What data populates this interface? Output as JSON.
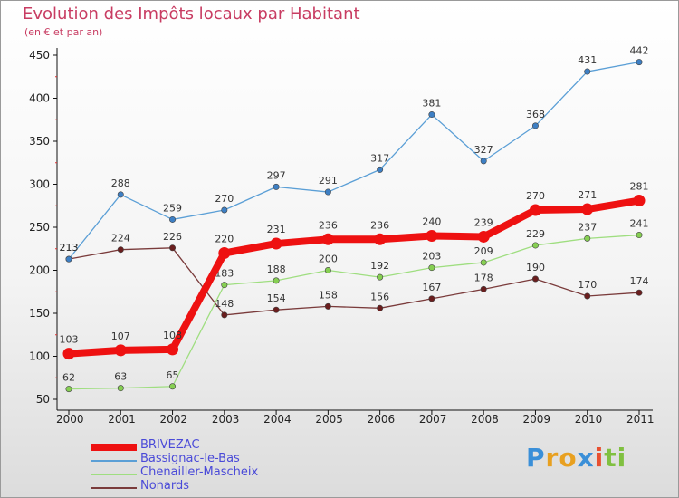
{
  "title": "Evolution des Impôts locaux par Habitant",
  "subtitle": "(en € et par an)",
  "logo": {
    "p": "P",
    "r": "r",
    "o": "o",
    "x": "x",
    "i1": "i",
    "t": "t",
    "i2": "i"
  },
  "colors": {
    "logo_p": "#3a8fd8",
    "logo_r": "#e8a020",
    "logo_o": "#e8a020",
    "logo_x": "#3a8fd8",
    "logo_i1": "#e85030",
    "logo_t": "#80c040",
    "logo_i2": "#80c040"
  },
  "chart_data": {
    "type": "line",
    "x": [
      "2000",
      "2001",
      "2002",
      "2003",
      "2004",
      "2005",
      "2006",
      "2007",
      "2008",
      "2009",
      "2010",
      "2011"
    ],
    "ylim": [
      50,
      450
    ],
    "yticks": [
      50,
      100,
      150,
      200,
      250,
      300,
      350,
      400,
      450
    ],
    "grid": false,
    "legend_position": "bottom-left",
    "series": [
      {
        "name": "BRIVEZAC",
        "color": "#ee1111",
        "point_color": "#ee1111",
        "values": [
          103,
          107,
          108,
          220,
          231,
          236,
          236,
          240,
          239,
          270,
          271,
          281
        ]
      },
      {
        "name": "Bassignac-le-Bas",
        "color": "#5b9fd6",
        "point_color": "#3d7fc4",
        "values": [
          213,
          288,
          259,
          270,
          297,
          291,
          317,
          381,
          327,
          368,
          431,
          442
        ]
      },
      {
        "name": "Chenailler-Mascheix",
        "color": "#9fde80",
        "point_color": "#86cf52",
        "values": [
          62,
          63,
          65,
          183,
          188,
          200,
          192,
          203,
          209,
          229,
          237,
          241
        ]
      },
      {
        "name": "Nonards",
        "color": "#7a3b3b",
        "point_color": "#6a1e1e",
        "values": [
          213,
          224,
          226,
          148,
          154,
          158,
          156,
          167,
          178,
          190,
          170,
          174
        ]
      }
    ]
  }
}
